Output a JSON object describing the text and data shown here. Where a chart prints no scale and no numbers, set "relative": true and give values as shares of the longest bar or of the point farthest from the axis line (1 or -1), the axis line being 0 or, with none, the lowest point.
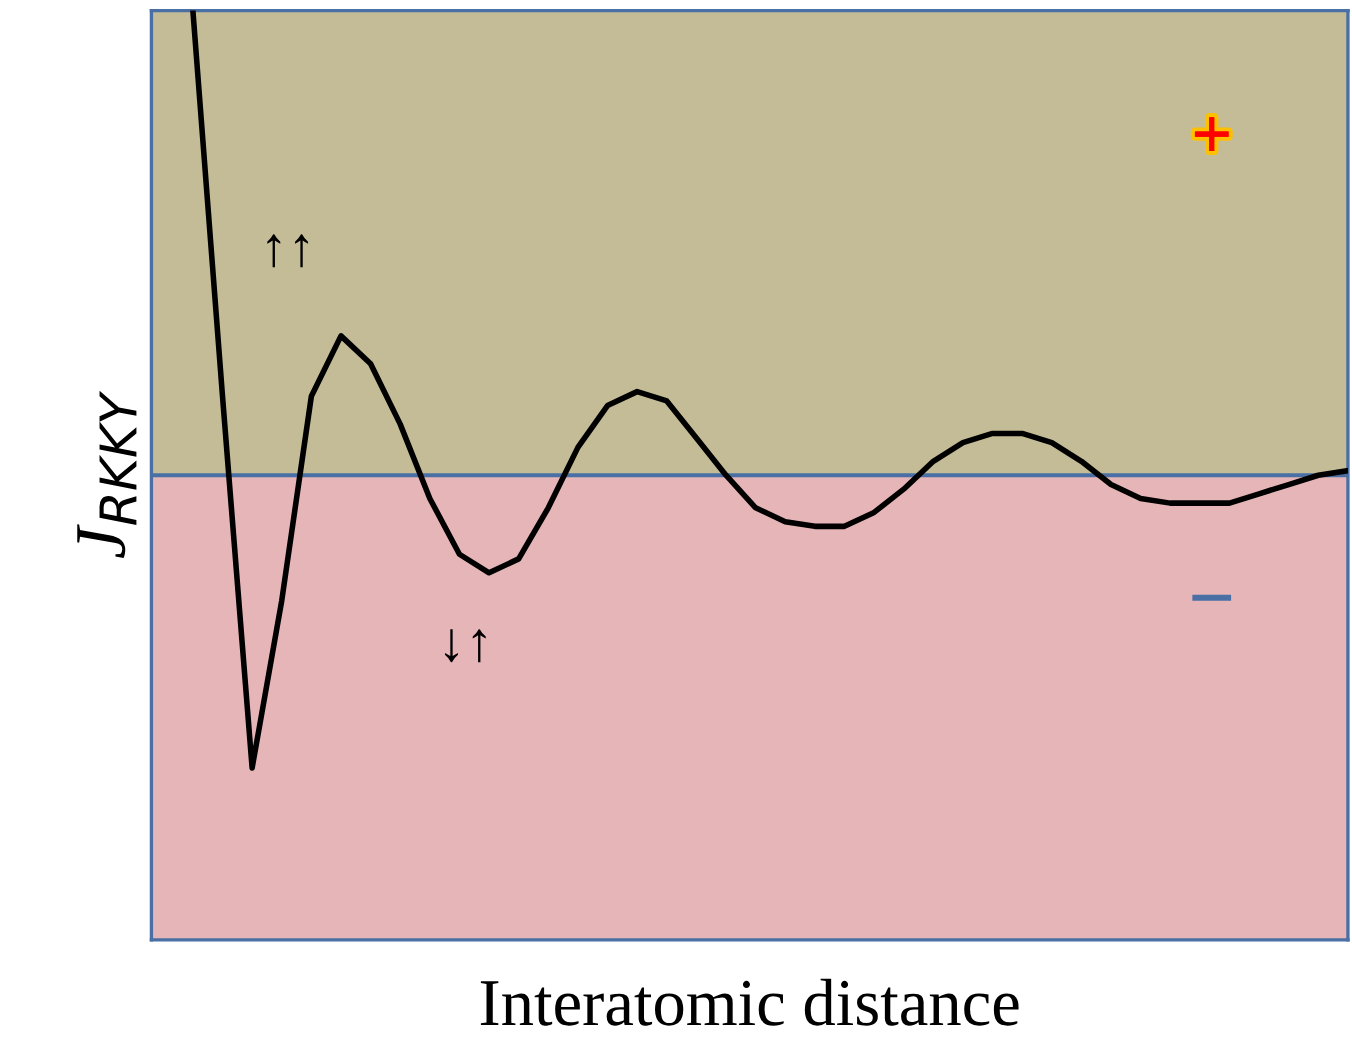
{
  "chart_data": {
    "type": "line",
    "relative": true,
    "xlabel": "Interatomic distance",
    "ylabel": "J$_{RKKY}$",
    "categories": [
      null,
      null,
      null,
      null,
      null,
      null,
      null,
      null,
      null,
      null,
      null,
      null,
      null,
      null,
      null,
      null,
      null,
      null,
      null,
      null,
      null,
      null,
      null,
      null,
      null,
      null,
      null,
      null,
      null,
      null,
      null,
      null,
      null,
      null,
      null,
      null,
      null,
      null,
      null,
      null
    ],
    "series": [
      {
        "color": "#000000",
        "values": [
          1.0,
          0.17,
          -0.63,
          -0.27,
          0.17,
          0.3,
          0.24,
          0.11,
          -0.05,
          -0.17,
          -0.21,
          -0.18,
          -0.07,
          0.06,
          0.15,
          0.18,
          0.16,
          0.08,
          0.0,
          -0.07,
          -0.1,
          -0.11,
          -0.11,
          -0.08,
          -0.03,
          0.03,
          0.07,
          0.09,
          0.09,
          0.07,
          0.03,
          -0.02,
          -0.05,
          -0.06,
          -0.06,
          -0.06,
          -0.04,
          -0.02,
          0.0,
          0.01
        ]
      }
    ],
    "ref_lines": [
      {
        "axis": "y",
        "value": 0,
        "color": "#4a6fa5"
      }
    ],
    "bands": [
      {
        "axis": "y",
        "from": 0,
        "to": 1,
        "color": "#c4bc96"
      },
      {
        "axis": "y",
        "from": -1,
        "to": 0,
        "color": "#e6b5b7"
      }
    ],
    "annotations": [
      "↑↑",
      "↓↑",
      "+",
      "−"
    ],
    "legend": false,
    "marker": "none",
    "line_style": "solid",
    "tick_labels": false
  }
}
